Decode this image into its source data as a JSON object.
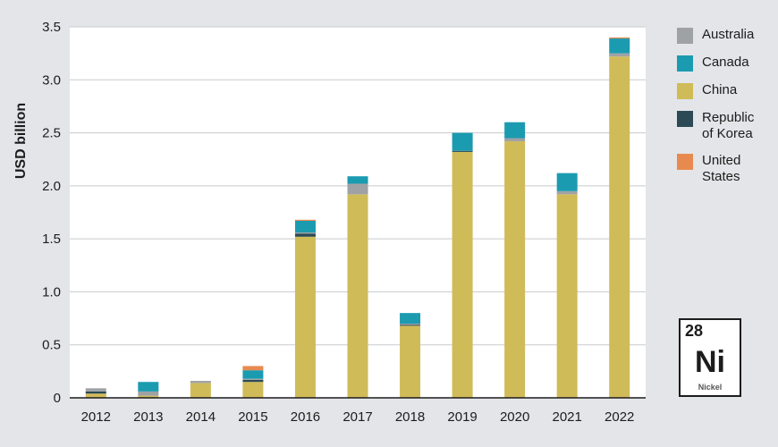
{
  "chart_data": {
    "type": "bar",
    "stacked": true,
    "ylabel": "USD billion",
    "ylim": [
      0,
      3.5
    ],
    "yticks": [
      "0",
      "0.5",
      "1.0",
      "1.5",
      "2.0",
      "2.5",
      "3.0",
      "3.5"
    ],
    "ytick_values": [
      0,
      0.5,
      1.0,
      1.5,
      2.0,
      2.5,
      3.0,
      3.5
    ],
    "grid": true,
    "legend_position": "right",
    "categories": [
      "2012",
      "2013",
      "2014",
      "2015",
      "2016",
      "2017",
      "2018",
      "2019",
      "2020",
      "2021",
      "2022"
    ],
    "series": [
      {
        "name": "China",
        "color": "#d0bb59",
        "values": [
          0.04,
          0.02,
          0.14,
          0.15,
          1.52,
          1.92,
          0.68,
          2.32,
          2.42,
          1.92,
          3.22
        ]
      },
      {
        "name": "Republic\nof Korea",
        "color": "#2b4a55",
        "values": [
          0.02,
          0.0,
          0.0,
          0.02,
          0.03,
          0.0,
          0.01,
          0.01,
          0.0,
          0.0,
          0.0
        ]
      },
      {
        "name": "Australia",
        "color": "#9fa2a5",
        "values": [
          0.03,
          0.04,
          0.02,
          0.01,
          0.01,
          0.1,
          0.01,
          0.0,
          0.03,
          0.03,
          0.03
        ]
      },
      {
        "name": "Canada",
        "color": "#1b9bb0",
        "values": [
          0.0,
          0.09,
          0.0,
          0.08,
          0.11,
          0.07,
          0.1,
          0.17,
          0.15,
          0.17,
          0.14
        ]
      },
      {
        "name": "United\nStates",
        "color": "#e88a4f",
        "values": [
          0.0,
          0.0,
          0.0,
          0.04,
          0.01,
          0.0,
          0.0,
          0.0,
          0.0,
          0.0,
          0.01
        ]
      }
    ]
  },
  "legend": [
    {
      "label": "Australia",
      "color": "#9fa2a5"
    },
    {
      "label": "Canada",
      "color": "#1b9bb0"
    },
    {
      "label": "China",
      "color": "#d0bb59"
    },
    {
      "label": "Republic\nof Korea",
      "color": "#2b4a55"
    },
    {
      "label": "United\nStates",
      "color": "#e88a4f"
    }
  ],
  "element": {
    "number": "28",
    "symbol": "Ni",
    "name": "Nickel"
  }
}
